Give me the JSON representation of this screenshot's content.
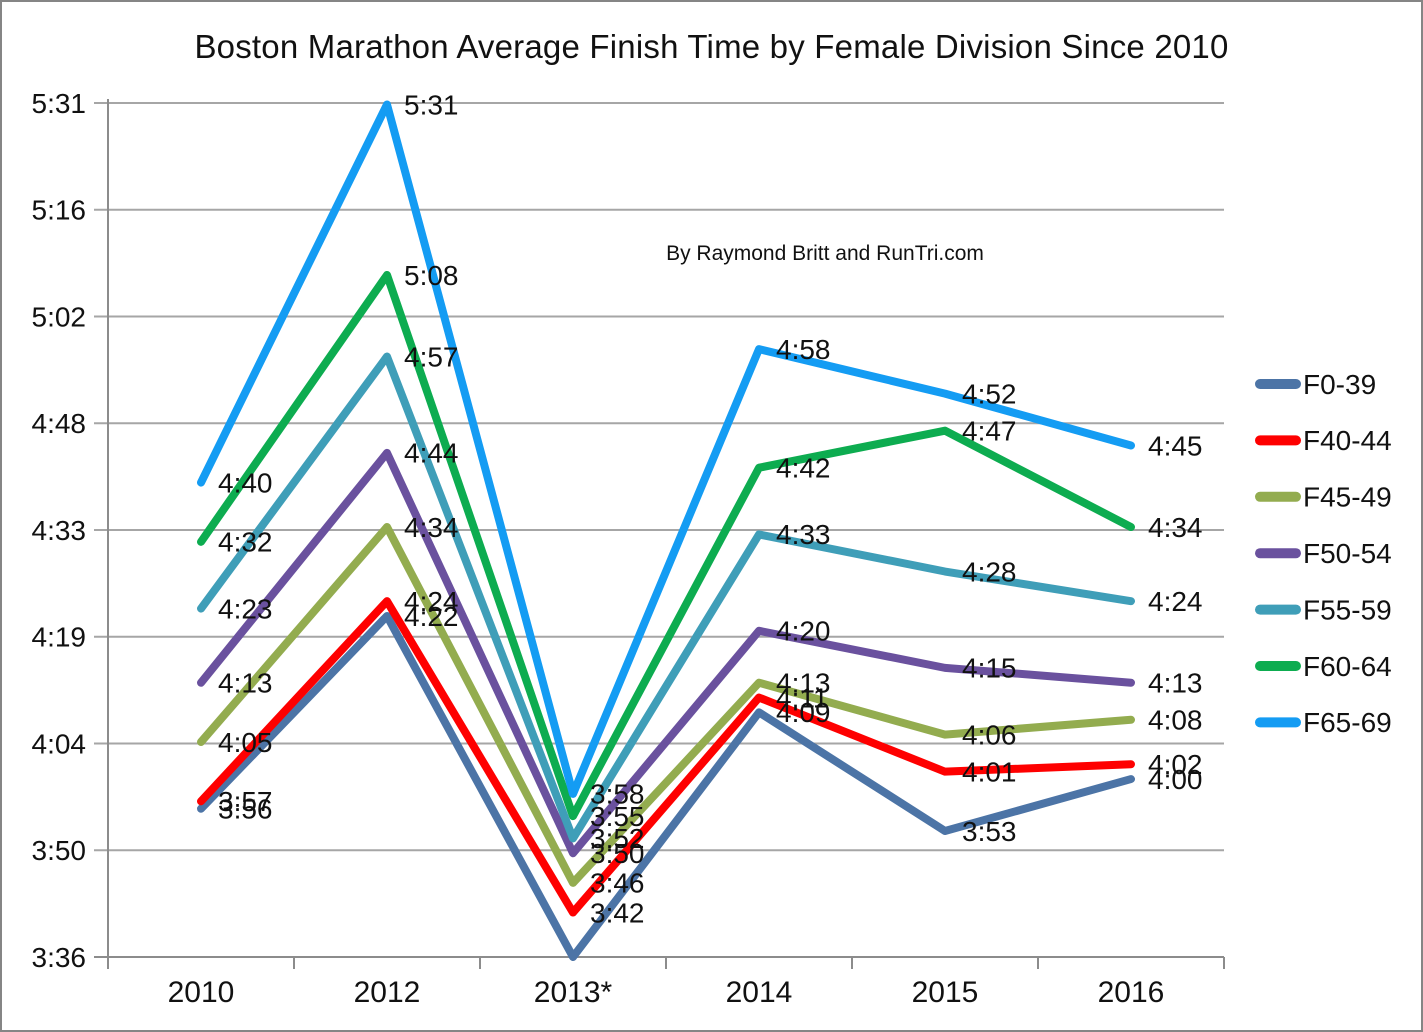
{
  "annotation": "By Raymond  Britt and RunTri.com",
  "chart_data": {
    "type": "line",
    "title": "Boston Marathon Average Finish Time by Female Division Since 2010",
    "x_categories": [
      "2010",
      "2012",
      "2013*",
      "2014",
      "2015",
      "2016"
    ],
    "y_tick_labels": [
      "3:36",
      "3:50",
      "4:04",
      "4:19",
      "4:33",
      "4:48",
      "5:02",
      "5:16",
      "5:31"
    ],
    "y_axis_range_minutes": [
      216,
      331.2
    ],
    "y_axis_unit": "h:mm finish time",
    "grid": "horizontal-only",
    "legend_position": "right",
    "data_labels": "right-of-point",
    "series": [
      {
        "name": "F0-39",
        "color": "#4C74A6",
        "values": [
          "3:56",
          "4:22",
          "3:36",
          "4:09",
          "3:53",
          "4:00"
        ],
        "hidden_label_indices": [
          2
        ]
      },
      {
        "name": "F40-44",
        "color": "#FE0000",
        "values": [
          "3:57",
          "4:24",
          "3:42",
          "4:11",
          "4:01",
          "4:02"
        ]
      },
      {
        "name": "F45-49",
        "color": "#93AC4F",
        "values": [
          "4:05",
          "4:34",
          "3:46",
          "4:13",
          "4:06",
          "4:08"
        ]
      },
      {
        "name": "F50-54",
        "color": "#6A519E",
        "values": [
          "4:13",
          "4:44",
          "3:50",
          "4:20",
          "4:15",
          "4:13"
        ]
      },
      {
        "name": "F55-59",
        "color": "#3F9EB8",
        "values": [
          "4:23",
          "4:57",
          "3:52",
          "4:33",
          "4:28",
          "4:24"
        ]
      },
      {
        "name": "F60-64",
        "color": "#0DAC50",
        "values": [
          "4:32",
          "5:08",
          "3:55",
          "4:42",
          "4:47",
          "4:34"
        ]
      },
      {
        "name": "F65-69",
        "color": "#149CF3",
        "values": [
          "4:40",
          "5:31",
          "3:58",
          "4:58",
          "4:52",
          "4:45"
        ]
      }
    ],
    "colors": {
      "gridline": "#A6A6A6",
      "axis": "#8C8C8C",
      "text": "#111111"
    }
  }
}
